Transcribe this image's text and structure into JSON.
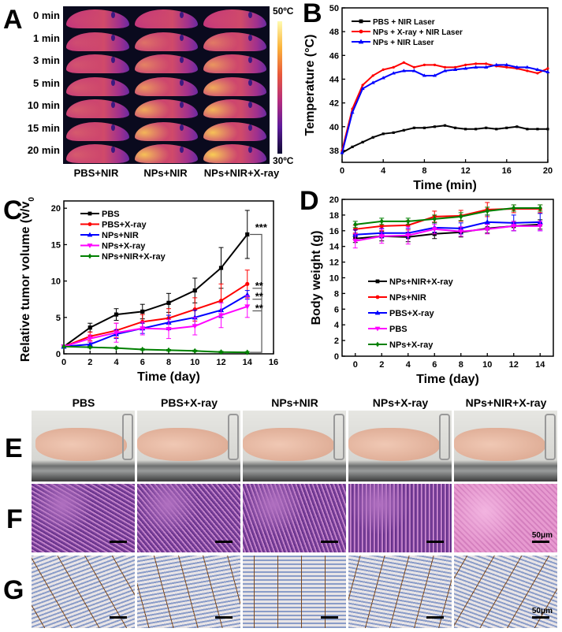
{
  "panels": {
    "a": "A",
    "b": "B",
    "c": "C",
    "d": "D",
    "e": "E",
    "f": "F",
    "g": "G"
  },
  "thermal": {
    "rows": [
      "0 min",
      "1 min",
      "3 min",
      "5 min",
      "10 min",
      "15 min",
      "20 min"
    ],
    "cols": [
      "PBS+NIR",
      "NPs+NIR",
      "NPs+NIR+X-ray"
    ],
    "colorbar_max": "50ºC",
    "colorbar_min": "30ºC",
    "hotspot_intensity": [
      [
        0.1,
        0.1,
        0.1
      ],
      [
        0.2,
        0.45,
        0.5
      ],
      [
        0.25,
        0.55,
        0.65
      ],
      [
        0.28,
        0.65,
        0.75
      ],
      [
        0.3,
        0.75,
        0.8
      ],
      [
        0.3,
        0.8,
        0.85
      ],
      [
        0.3,
        0.85,
        0.9
      ]
    ]
  },
  "photos": {
    "headers": [
      "PBS",
      "PBS+X-ray",
      "NPs+NIR",
      "NPs+X-ray",
      "NPs+NIR+X-ray"
    ],
    "scale_label": "50μm",
    "colors": {
      "he_purple": "#7a3f9a",
      "he_pink": "#e79ad0",
      "ihc_blue": "#8a9cc8",
      "ihc_brown": "#7a4a22",
      "skin": "#d9a48c"
    }
  },
  "chart_data": [
    {
      "id": "B",
      "type": "line",
      "xlabel": "Time (min)",
      "ylabel": "Temperature (°C)",
      "xlim": [
        0,
        20
      ],
      "ylim": [
        37,
        50
      ],
      "xticks": [
        0,
        4,
        8,
        12,
        16,
        20
      ],
      "yticks": [
        38,
        40,
        42,
        44,
        46,
        48,
        50
      ],
      "legend": "top-left",
      "x": [
        0,
        1,
        2,
        3,
        4,
        5,
        6,
        7,
        8,
        9,
        10,
        11,
        12,
        13,
        14,
        15,
        16,
        17,
        18,
        19,
        20
      ],
      "series": [
        {
          "name": "PBS + NIR Laser",
          "color": "#000000",
          "marker": "square",
          "values": [
            37.8,
            38.3,
            38.7,
            39.1,
            39.4,
            39.5,
            39.7,
            39.9,
            39.9,
            40.0,
            40.1,
            39.9,
            39.8,
            39.8,
            39.9,
            39.8,
            39.9,
            40.0,
            39.8,
            39.8,
            39.8
          ]
        },
        {
          "name": "NPs + X-ray + NIR Laser",
          "color": "#ff0000",
          "marker": "circle",
          "values": [
            38.0,
            41.5,
            43.5,
            44.3,
            44.8,
            45.0,
            45.4,
            45.0,
            45.2,
            45.2,
            45.0,
            45.0,
            45.2,
            45.3,
            45.3,
            45.1,
            45.0,
            44.9,
            44.7,
            44.5,
            44.9
          ]
        },
        {
          "name": "NPs + NIR Laser",
          "color": "#0000ff",
          "marker": "triangle",
          "values": [
            37.8,
            41.2,
            43.2,
            43.7,
            44.1,
            44.5,
            44.7,
            44.7,
            44.3,
            44.3,
            44.7,
            44.8,
            44.9,
            45.0,
            45.0,
            45.2,
            45.2,
            45.0,
            45.0,
            44.8,
            44.6
          ]
        }
      ]
    },
    {
      "id": "C",
      "type": "line",
      "xlabel": "Time (day)",
      "ylabel": "Relative tumor volume (v/v",
      "ylabel_sub": "0",
      "ylabel_end": ")",
      "xlim": [
        0,
        16
      ],
      "ylim": [
        0,
        21
      ],
      "xticks": [
        0,
        2,
        4,
        6,
        8,
        10,
        12,
        14,
        16
      ],
      "yticks": [
        0,
        5,
        10,
        15,
        20
      ],
      "legend": "top-left",
      "x": [
        0,
        2,
        4,
        6,
        8,
        10,
        12,
        14
      ],
      "series": [
        {
          "name": "PBS",
          "color": "#000000",
          "marker": "square",
          "values": [
            1,
            3.6,
            5.4,
            5.8,
            7.0,
            8.7,
            11.8,
            16.4
          ],
          "errors": [
            0,
            0.6,
            0.8,
            1.0,
            1.3,
            1.7,
            2.8,
            3.3
          ]
        },
        {
          "name": "PBS+X-ray",
          "color": "#ff0000",
          "marker": "circle",
          "values": [
            1,
            2.4,
            3.2,
            4.4,
            4.9,
            6.1,
            7.3,
            9.6
          ],
          "errors": [
            0,
            0.6,
            1.0,
            1.0,
            1.3,
            1.6,
            2.3,
            1.9
          ]
        },
        {
          "name": "NPs+NIR",
          "color": "#0000ff",
          "marker": "triangle",
          "values": [
            1,
            1.3,
            2.7,
            3.5,
            4.3,
            5.0,
            6.0,
            8.1
          ],
          "errors": [
            0,
            0.3,
            0.6,
            0.7,
            1.0,
            1.0,
            1.0,
            0.6
          ]
        },
        {
          "name": "NPs+X-ray",
          "color": "#ff00ff",
          "marker": "triangle-down",
          "values": [
            1,
            2.1,
            2.9,
            3.5,
            3.4,
            3.8,
            5.3,
            6.5
          ],
          "errors": [
            0,
            0.5,
            1.3,
            0.9,
            1.3,
            1.2,
            1.7,
            1.5
          ]
        },
        {
          "name": "NPs+NIR+X-ray",
          "color": "#008000",
          "marker": "diamond",
          "values": [
            1,
            0.9,
            0.8,
            0.6,
            0.5,
            0.4,
            0.25,
            0.2
          ],
          "errors": [
            0,
            0.1,
            0.1,
            0.1,
            0.1,
            0.1,
            0.1,
            0.1
          ]
        }
      ],
      "annotations": [
        "***",
        "**",
        "**",
        "**"
      ]
    },
    {
      "id": "D",
      "type": "line",
      "xlabel": "Time (day)",
      "ylabel": "Body weight (g)",
      "xlim": [
        -1,
        15
      ],
      "ylim": [
        0,
        20
      ],
      "xticks": [
        0,
        2,
        4,
        6,
        8,
        10,
        12,
        14
      ],
      "yticks": [
        0,
        2,
        4,
        6,
        8,
        10,
        12,
        14,
        16,
        18,
        20
      ],
      "legend": "center-left",
      "x": [
        0,
        2,
        4,
        6,
        8,
        10,
        12,
        14
      ],
      "series": [
        {
          "name": "NPs+NIR+X-ray",
          "color": "#000000",
          "marker": "square",
          "values": [
            15.0,
            15.3,
            15.2,
            15.6,
            15.8,
            16.3,
            16.6,
            16.8
          ],
          "errors": [
            0.5,
            0.6,
            0.6,
            0.6,
            0.6,
            0.6,
            0.6,
            0.6
          ]
        },
        {
          "name": "NPs+NIR",
          "color": "#ff0000",
          "marker": "circle",
          "values": [
            16.2,
            16.6,
            16.7,
            17.8,
            17.9,
            18.7,
            18.8,
            18.8
          ],
          "errors": [
            0.5,
            0.6,
            0.6,
            0.7,
            0.7,
            0.9,
            0.5,
            0.5
          ]
        },
        {
          "name": "PBS+X-ray",
          "color": "#0000ff",
          "marker": "triangle",
          "values": [
            15.5,
            15.7,
            15.7,
            16.4,
            16.3,
            17.1,
            17.0,
            17.1
          ],
          "errors": [
            0.6,
            0.6,
            0.6,
            0.6,
            0.7,
            0.9,
            1.0,
            1.1
          ]
        },
        {
          "name": "PBS",
          "color": "#ff00ff",
          "marker": "triangle-down",
          "values": [
            14.7,
            15.3,
            15.4,
            16.2,
            15.9,
            16.2,
            16.6,
            16.6
          ],
          "errors": [
            0.9,
            0.9,
            1.1,
            0.6,
            0.6,
            0.6,
            0.6,
            0.6
          ]
        },
        {
          "name": "NPs+X-ray",
          "color": "#008000",
          "marker": "diamond",
          "values": [
            16.8,
            17.2,
            17.2,
            17.5,
            17.8,
            18.5,
            18.9,
            18.9
          ],
          "errors": [
            0.4,
            0.4,
            0.4,
            0.5,
            0.5,
            0.5,
            0.4,
            0.4
          ]
        }
      ]
    }
  ]
}
